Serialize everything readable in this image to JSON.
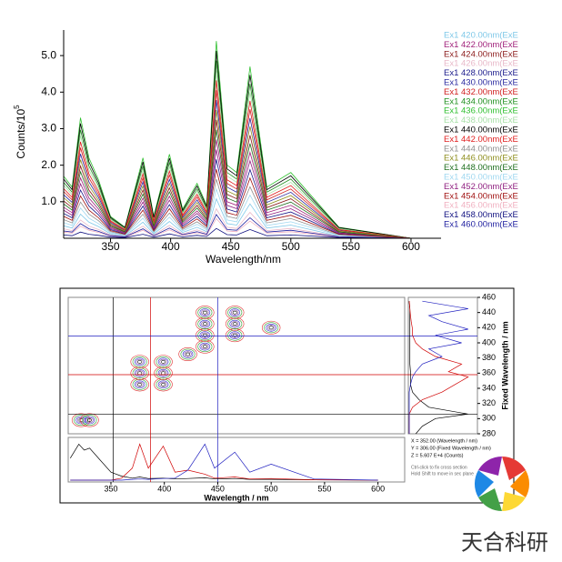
{
  "chart_data": [
    {
      "type": "line",
      "ylabel": "Counts/10",
      "ylabel_exponent": "5",
      "xlabel": "Wavelength/nm",
      "xlim": [
        311,
        625
      ],
      "xticks": [
        350,
        400,
        450,
        500,
        550,
        600
      ],
      "ylim": [
        0,
        5.7
      ],
      "yticks": [
        {
          "value": 1,
          "label": "1.0"
        },
        {
          "value": 2,
          "label": "2.0"
        },
        {
          "value": 3,
          "label": "3.0"
        },
        {
          "value": 4,
          "label": "4.0"
        },
        {
          "value": 5,
          "label": "5.0"
        }
      ],
      "x": [
        311,
        318,
        325,
        332,
        340,
        350,
        362,
        377,
        386,
        399,
        410,
        422,
        430,
        438,
        447,
        455,
        466,
        480,
        500,
        540,
        600
      ],
      "series": [
        {
          "name": "Ex1 420.00nm(ExE",
          "color": "#7fc8e8",
          "values": [
            0.34,
            0.28,
            0.66,
            0.44,
            0.32,
            0.12,
            0.06,
            0.44,
            0.12,
            0.46,
            0.16,
            0.3,
            0.18,
            1.08,
            0.4,
            0.36,
            0.94,
            0.28,
            0.36,
            0.06,
            0
          ]
        },
        {
          "name": "Ex1 422.00nm(ExE",
          "color": "#a0207a",
          "values": [
            0.85,
            0.7,
            1.65,
            1.1,
            0.8,
            0.3,
            0.15,
            1.1,
            0.3,
            1.15,
            0.4,
            0.75,
            0.45,
            2.7,
            1.0,
            0.9,
            2.35,
            0.7,
            0.9,
            0.15,
            0
          ]
        },
        {
          "name": "Ex1 424.00nm(ExE",
          "color": "#8b1a1a",
          "values": [
            1.02,
            0.84,
            1.98,
            1.32,
            0.96,
            0.36,
            0.18,
            1.32,
            0.36,
            1.38,
            0.48,
            0.9,
            0.54,
            3.24,
            1.2,
            1.08,
            2.82,
            0.84,
            1.08,
            0.18,
            0
          ]
        },
        {
          "name": "Ex1 426.00nm(ExE",
          "color": "#e8b8c8",
          "values": [
            0.26,
            0.21,
            0.5,
            0.33,
            0.24,
            0.09,
            0.05,
            0.33,
            0.09,
            0.35,
            0.12,
            0.23,
            0.14,
            0.81,
            0.3,
            0.27,
            0.71,
            0.21,
            0.27,
            0.05,
            0
          ]
        },
        {
          "name": "Ex1 428.00nm(ExE",
          "color": "#1a1a8b",
          "values": [
            0.68,
            0.56,
            1.32,
            0.88,
            0.64,
            0.24,
            0.12,
            0.88,
            0.24,
            0.92,
            0.32,
            0.6,
            0.36,
            2.16,
            0.8,
            0.72,
            1.88,
            0.56,
            0.72,
            0.12,
            0
          ]
        },
        {
          "name": "Ex1 430.00nm(ExE",
          "color": "#2a2aa0",
          "values": [
            1.19,
            0.98,
            2.31,
            1.54,
            1.12,
            0.42,
            0.21,
            1.54,
            0.42,
            1.61,
            0.56,
            1.05,
            0.63,
            3.78,
            1.4,
            1.26,
            3.29,
            0.98,
            1.26,
            0.21,
            0
          ]
        },
        {
          "name": "Ex1 432.00nm(ExE",
          "color": "#d02020",
          "values": [
            1.28,
            1.05,
            2.48,
            1.65,
            1.2,
            0.45,
            0.23,
            1.65,
            0.45,
            1.73,
            0.6,
            1.13,
            0.68,
            4.05,
            1.5,
            1.35,
            3.53,
            1.05,
            1.35,
            0.23,
            0
          ]
        },
        {
          "name": "Ex1 434.00nm(ExE",
          "color": "#209020",
          "values": [
            1.53,
            1.26,
            2.97,
            1.98,
            1.44,
            0.54,
            0.27,
            1.98,
            0.54,
            2.07,
            0.72,
            1.35,
            0.81,
            4.86,
            1.8,
            1.62,
            4.23,
            1.26,
            1.62,
            0.27,
            0
          ]
        },
        {
          "name": "Ex1 436.00nm(ExE",
          "color": "#30c030",
          "values": [
            1.7,
            1.4,
            3.3,
            2.2,
            1.6,
            0.6,
            0.3,
            2.2,
            0.6,
            2.3,
            0.8,
            1.5,
            0.9,
            5.4,
            2.0,
            1.8,
            4.7,
            1.4,
            1.8,
            0.3,
            0
          ]
        },
        {
          "name": "Ex1 438.00nm(ExE",
          "color": "#a8e0a8",
          "values": [
            1.45,
            1.19,
            2.81,
            1.87,
            1.36,
            0.51,
            0.26,
            1.87,
            0.51,
            1.96,
            0.68,
            1.28,
            0.77,
            4.59,
            1.7,
            1.53,
            4.0,
            1.19,
            1.53,
            0.26,
            0
          ]
        },
        {
          "name": "Ex1 440.00nm(ExE",
          "color": "#000000",
          "values": [
            1.62,
            1.33,
            3.14,
            2.09,
            1.52,
            0.57,
            0.29,
            2.09,
            0.57,
            2.19,
            0.76,
            1.43,
            0.86,
            5.13,
            1.9,
            1.71,
            4.47,
            1.33,
            1.71,
            0.29,
            0
          ]
        },
        {
          "name": "Ex1 442.00nm(ExE",
          "color": "#e02020",
          "values": [
            1.36,
            1.12,
            2.64,
            1.76,
            1.28,
            0.48,
            0.24,
            1.76,
            0.48,
            1.84,
            0.64,
            1.2,
            0.72,
            4.32,
            1.6,
            1.44,
            3.76,
            1.12,
            1.44,
            0.24,
            0
          ]
        },
        {
          "name": "Ex1 444.00nm(ExE",
          "color": "#909090",
          "values": [
            0.51,
            0.42,
            0.99,
            0.66,
            0.48,
            0.18,
            0.09,
            0.66,
            0.18,
            0.69,
            0.24,
            0.45,
            0.27,
            1.62,
            0.6,
            0.54,
            1.41,
            0.42,
            0.54,
            0.09,
            0
          ]
        },
        {
          "name": "Ex1 446.00nm(ExE",
          "color": "#909020",
          "values": [
            1.11,
            0.91,
            2.15,
            1.43,
            1.04,
            0.39,
            0.2,
            1.43,
            0.39,
            1.5,
            0.52,
            0.98,
            0.59,
            3.51,
            1.3,
            1.17,
            3.06,
            0.91,
            1.17,
            0.2,
            0
          ]
        },
        {
          "name": "Ex1 448.00nm(ExE",
          "color": "#207020",
          "values": [
            0.94,
            0.77,
            1.82,
            1.21,
            0.88,
            0.33,
            0.17,
            1.21,
            0.33,
            1.27,
            0.44,
            0.83,
            0.5,
            2.97,
            1.1,
            0.99,
            2.59,
            0.77,
            0.99,
            0.17,
            0
          ]
        },
        {
          "name": "Ex1 450.00nm(ExE",
          "color": "#a0d8f0",
          "values": [
            0.43,
            0.35,
            0.83,
            0.55,
            0.4,
            0.15,
            0.08,
            0.55,
            0.15,
            0.58,
            0.2,
            0.38,
            0.23,
            1.35,
            0.5,
            0.45,
            1.18,
            0.35,
            0.45,
            0.08,
            0
          ]
        },
        {
          "name": "Ex1 452.00nm(ExE",
          "color": "#902080",
          "values": [
            0.77,
            0.63,
            1.49,
            0.99,
            0.72,
            0.27,
            0.14,
            0.99,
            0.27,
            1.04,
            0.36,
            0.68,
            0.41,
            2.43,
            0.9,
            0.81,
            2.12,
            0.63,
            0.81,
            0.14,
            0
          ]
        },
        {
          "name": "Ex1 454.00nm(ExE",
          "color": "#a01010",
          "values": [
            0.6,
            0.49,
            1.16,
            0.77,
            0.56,
            0.21,
            0.11,
            0.77,
            0.21,
            0.81,
            0.28,
            0.53,
            0.32,
            1.89,
            0.7,
            0.63,
            1.65,
            0.49,
            0.63,
            0.11,
            0
          ]
        },
        {
          "name": "Ex1 456.00nm(ExE",
          "color": "#f0b0c0",
          "values": [
            0.17,
            0.14,
            0.33,
            0.22,
            0.16,
            0.06,
            0.03,
            0.22,
            0.06,
            0.23,
            0.08,
            0.15,
            0.09,
            0.54,
            0.2,
            0.18,
            0.47,
            0.14,
            0.18,
            0.03,
            0
          ]
        },
        {
          "name": "Ex1 458.00nm(ExE",
          "color": "#101080",
          "values": [
            0.09,
            0.07,
            0.17,
            0.11,
            0.08,
            0.03,
            0.02,
            0.11,
            0.03,
            0.12,
            0.04,
            0.08,
            0.05,
            0.27,
            0.1,
            0.09,
            0.24,
            0.07,
            0.09,
            0.02,
            0
          ]
        },
        {
          "name": "Ex1 460.00nm(ExE",
          "color": "#2020a0",
          "values": [
            0.2,
            0.17,
            0.4,
            0.26,
            0.19,
            0.07,
            0.04,
            0.26,
            0.07,
            0.28,
            0.1,
            0.18,
            0.11,
            0.65,
            0.24,
            0.22,
            0.56,
            0.17,
            0.22,
            0.04,
            0
          ]
        }
      ]
    },
    {
      "type": "contour",
      "xlabel": "Wavelength / nm",
      "ylabel": "Fixed Wavelength / nm",
      "xlim": [
        310,
        625
      ],
      "xticks": [
        350,
        400,
        450,
        500,
        550,
        600
      ],
      "ylim": [
        280,
        460
      ],
      "yticks": [
        280,
        300,
        320,
        340,
        360,
        380,
        400,
        420,
        440,
        460
      ],
      "contour_peaks": {
        "x": [
          322,
          330,
          377,
          377,
          399,
          399,
          377,
          399,
          422,
          438,
          438,
          438,
          438,
          466,
          466,
          466,
          500
        ],
        "y": [
          298,
          298,
          345,
          360,
          345,
          360,
          375,
          375,
          385,
          395,
          410,
          425,
          440,
          410,
          425,
          440,
          420
        ]
      },
      "sections": {
        "x": [
          352,
          387,
          450
        ],
        "y": [
          306,
          358,
          409
        ],
        "colors": [
          "#000000",
          "#d00000",
          "#2020c0"
        ]
      },
      "spectra": {
        "x": [
          312,
          320,
          325,
          330,
          340,
          350,
          360,
          370,
          377,
          385,
          399,
          410,
          422,
          438,
          447,
          466,
          480,
          500,
          540,
          600
        ],
        "ylim": [
          0,
          1
        ],
        "series": [
          {
            "color": "#000000",
            "values": [
              0.55,
              0.9,
              0.75,
              0.8,
              0.5,
              0.2,
              0.1,
              0.05,
              0.08,
              0.04,
              0.05,
              0.03,
              0.04,
              0.06,
              0.03,
              0.04,
              0.02,
              0.02,
              0.01,
              0
            ]
          },
          {
            "color": "#d00000",
            "values": [
              0,
              0,
              0,
              0,
              0,
              0,
              0.05,
              0.3,
              0.9,
              0.3,
              0.85,
              0.2,
              0.25,
              0.15,
              0.05,
              0.08,
              0.03,
              0.04,
              0.01,
              0
            ]
          },
          {
            "color": "#2020c0",
            "values": [
              0,
              0,
              0,
              0,
              0,
              0,
              0,
              0.02,
              0.03,
              0.02,
              0.04,
              0.05,
              0.25,
              0.9,
              0.3,
              0.7,
              0.2,
              0.4,
              0.03,
              0
            ]
          }
        ]
      },
      "slices": {
        "y": [
          280,
          290,
          300,
          306,
          315,
          325,
          335,
          345,
          355,
          362,
          372,
          382,
          392,
          400,
          410,
          418,
          428,
          436,
          445,
          455
        ],
        "xlim": [
          0,
          1
        ],
        "series": [
          {
            "color": "#000000",
            "values": [
              0.1,
              0.2,
              0.4,
              0.9,
              0.3,
              0.15,
              0.05,
              0.02,
              0.02,
              0.02,
              0.01,
              0.01,
              0.01,
              0.01,
              0.01,
              0.01,
              0.01,
              0.01,
              0.01,
              0
            ]
          },
          {
            "color": "#d00000",
            "values": [
              0,
              0,
              0,
              0,
              0.05,
              0.2,
              0.5,
              0.7,
              0.9,
              0.6,
              0.8,
              0.4,
              0.2,
              0.1,
              0.05,
              0.05,
              0.03,
              0.02,
              0.01,
              0
            ]
          },
          {
            "color": "#2020c0",
            "values": [
              0,
              0,
              0,
              0,
              0,
              0,
              0,
              0.02,
              0.05,
              0.1,
              0.2,
              0.5,
              0.3,
              0.8,
              0.4,
              0.9,
              0.5,
              0.3,
              0.9,
              0.2
            ]
          }
        ]
      },
      "readout": [
        "X = 352.00 (Wavelength / nm)",
        "Y = 306.00 (Fixed Wavelength / nm)",
        "Z = 5.607 E+4 (Counts)"
      ],
      "hints": [
        "Ctrl-click to fix cross section",
        "Hold Shift to move in sec plane"
      ]
    }
  ],
  "watermark": {
    "text": "天合科研"
  }
}
